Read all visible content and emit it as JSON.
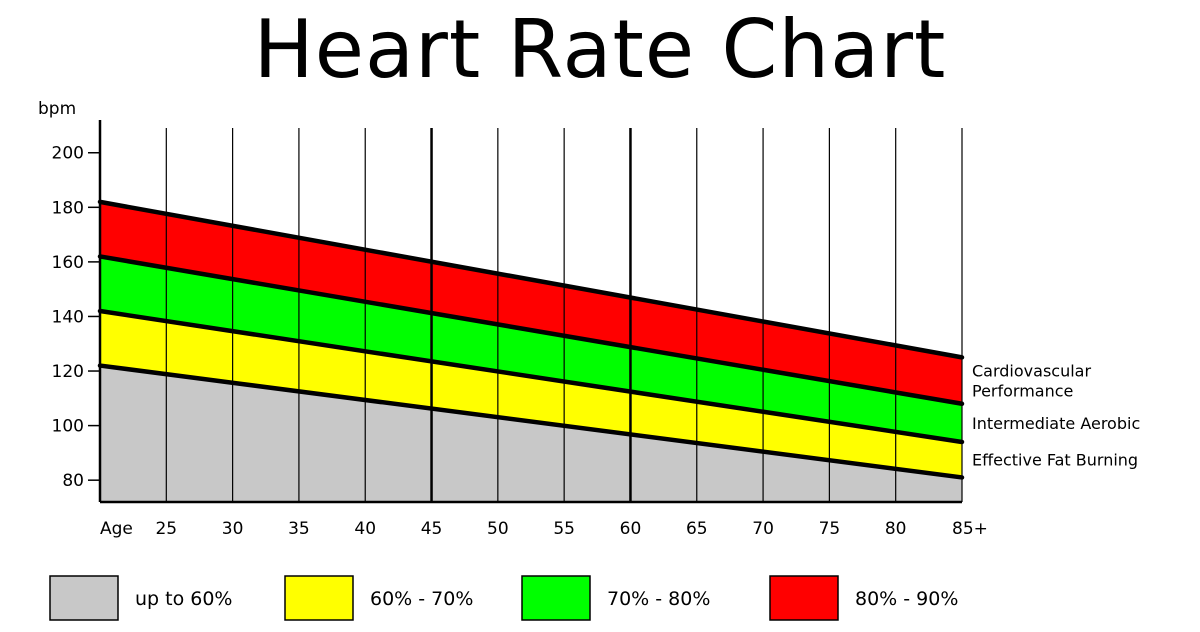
{
  "chart_data": {
    "type": "area",
    "title": "Heart Rate Chart",
    "ylabel": "bpm",
    "xlabel": "Age",
    "ylim": [
      72,
      212
    ],
    "xlim": [
      20,
      85
    ],
    "yticks": [
      80,
      100,
      120,
      140,
      160,
      180,
      200
    ],
    "yticks_labels": [
      "80",
      "100",
      "120",
      "140",
      "160",
      "180",
      "200"
    ],
    "xticks": [
      25,
      30,
      35,
      40,
      45,
      50,
      55,
      60,
      65,
      70,
      75,
      80,
      85
    ],
    "xticks_labels": [
      "25",
      "30",
      "35",
      "40",
      "45",
      "50",
      "55",
      "60",
      "65",
      "70",
      "75",
      "80",
      "85+"
    ],
    "grid": "vertical",
    "x": [
      20,
      85
    ],
    "boundaries": [
      {
        "values": [
          122,
          81
        ]
      },
      {
        "values": [
          142,
          94
        ]
      },
      {
        "values": [
          162,
          108
        ]
      },
      {
        "values": [
          182,
          125
        ]
      }
    ],
    "series": [
      {
        "name": "up to 60%",
        "color": "#c8c8c8"
      },
      {
        "name": "60% - 70%",
        "color": "#ffff00"
      },
      {
        "name": "70% - 80%",
        "color": "#00ff00"
      },
      {
        "name": "80% - 90%",
        "color": "#ff0000"
      }
    ],
    "zone_labels": [
      {
        "lines": [
          "Cardiovascular",
          "Performance"
        ],
        "zone": 3
      },
      {
        "lines": [
          "Intermediate Aerobic"
        ],
        "zone": 2
      },
      {
        "lines": [
          "Effective Fat Burning"
        ],
        "zone": 1
      }
    ],
    "legend_position": "bottom"
  }
}
